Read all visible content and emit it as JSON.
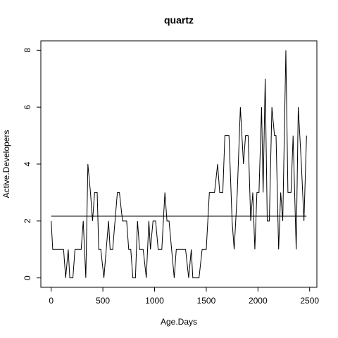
{
  "chart_data": {
    "type": "line",
    "title": "quartz",
    "x_label": "Age.Days",
    "y_label": "Active.Developers",
    "xlim": [
      -100,
      2570
    ],
    "ylim": [
      -0.33,
      8.33
    ],
    "xticks": [
      0,
      500,
      1000,
      1500,
      2000,
      2500
    ],
    "yticks": [
      0,
      2,
      4,
      6,
      8
    ],
    "series": [
      {
        "color": "#000000",
        "x": [
          0,
          15,
          120,
          140,
          165,
          180,
          210,
          230,
          290,
          310,
          335,
          355,
          380,
          400,
          420,
          445,
          460,
          480,
          510,
          555,
          570,
          595,
          640,
          660,
          690,
          730,
          750,
          770,
          790,
          815,
          835,
          855,
          890,
          920,
          945,
          960,
          985,
          1010,
          1035,
          1070,
          1100,
          1120,
          1140,
          1165,
          1190,
          1210,
          1270,
          1300,
          1330,
          1355,
          1370,
          1400,
          1430,
          1460,
          1500,
          1530,
          1580,
          1610,
          1630,
          1660,
          1680,
          1720,
          1750,
          1770,
          1800,
          1830,
          1860,
          1880,
          1905,
          1930,
          1950,
          1970,
          1990,
          2010,
          2035,
          2050,
          2070,
          2090,
          2110,
          2135,
          2160,
          2175,
          2200,
          2220,
          2240,
          2270,
          2290,
          2320,
          2340,
          2370,
          2390,
          2420,
          2445,
          2470
        ],
        "values": [
          2,
          1,
          1,
          0,
          1,
          0,
          0,
          1,
          1,
          2,
          0,
          4,
          3,
          2,
          3,
          3,
          1,
          1,
          0,
          2,
          1,
          1,
          3,
          3,
          2,
          2,
          1,
          1,
          0,
          0,
          2,
          1,
          1,
          0,
          2,
          1,
          2,
          2,
          1,
          1,
          3,
          2,
          2,
          1,
          0,
          1,
          1,
          1,
          0,
          1,
          0,
          0,
          0,
          1,
          1,
          3,
          3,
          4,
          3,
          3,
          5,
          5,
          2,
          1,
          3,
          6,
          4,
          5,
          5,
          2,
          3,
          1,
          3,
          3,
          6,
          3,
          7,
          2,
          2,
          6,
          5,
          5,
          1,
          3,
          2,
          8,
          3,
          3,
          5,
          1,
          6,
          4,
          2,
          5
        ]
      },
      {
        "color": "#000000",
        "x": [
          0,
          2470
        ],
        "values": [
          2.17,
          2.17
        ]
      }
    ]
  }
}
